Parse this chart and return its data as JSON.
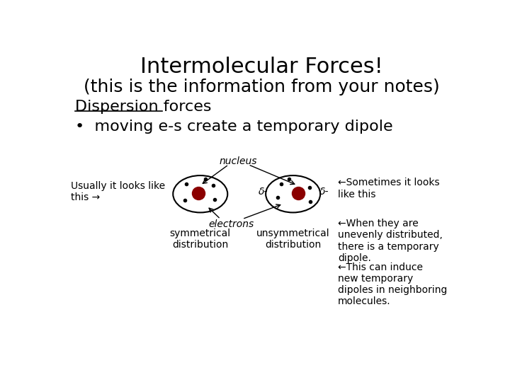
{
  "title_line1": "Intermolecular Forces!",
  "title_line2": "(this is the information from your notes)",
  "section_header": "Dispersion forces",
  "bullet": "•  moving e-s create a temporary dipole",
  "left_label": "Usually it looks like\nthis →",
  "right_label1": "←Sometimes it looks\nlike this",
  "right_label2": "←When they are\nunevenly distributed,\nthere is a temporary\ndipole.",
  "right_label3": "←This can induce\nnew temporary\ndipoles in neighboring\nmolecules.",
  "sym_label": "symmetrical\ndistribution",
  "unsym_label": "unsymmetrical\ndistribution",
  "nucleus_label": "nucleus",
  "electrons_label": "electrons",
  "delta_left": "δ-",
  "delta_right": "δ-",
  "bg_color": "#ffffff",
  "text_color": "#000000",
  "nucleus_color": "#8b0000",
  "title_fontsize": 22,
  "subtitle_fontsize": 18,
  "header_fontsize": 16,
  "bullet_fontsize": 16,
  "small_fontsize": 10
}
